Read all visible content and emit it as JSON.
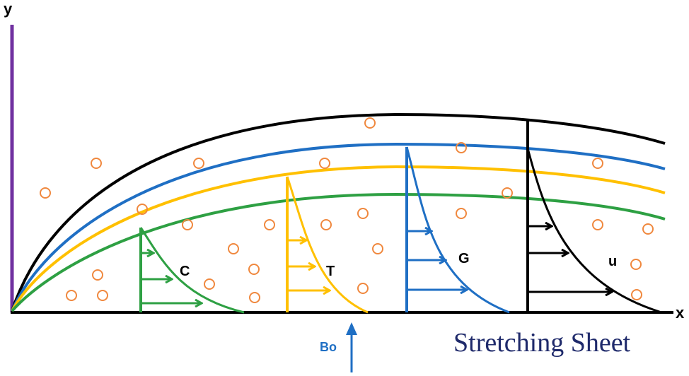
{
  "labels": {
    "y_axis": "y",
    "x_axis": "x",
    "concentration": "C",
    "temperature": "T",
    "microorganism": "G",
    "velocity": "u",
    "magnetic_field": "Bo",
    "sheet": "Stretching Sheet"
  },
  "colors": {
    "velocity": "#000000",
    "microorganism": "#1f6fc4",
    "temperature": "#ffc000",
    "concentration": "#2ea043",
    "wall": "#7030a0",
    "particles": "#f0883e",
    "magnetic_field": "#1f6fc4",
    "sheet_label": "#1f2a6b"
  },
  "icons": {
    "magnetic_field_arrow": "arrow-up-icon",
    "particles": "circle-outline-icon"
  }
}
